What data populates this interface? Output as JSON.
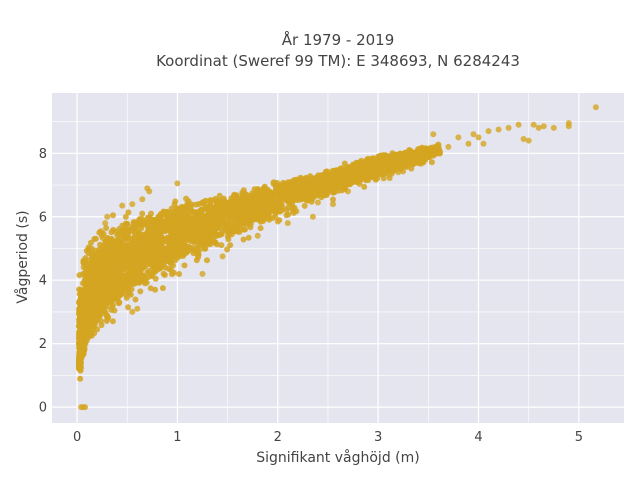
{
  "chart_data": {
    "type": "scatter",
    "title_lines": [
      "År 1979 - 2019",
      "Koordinat (Sweref 99 TM): E 348693, N 6284243"
    ],
    "xlabel": "Signifikant våghöjd (m)",
    "ylabel": "Vågperiod (s)",
    "xlim": [
      -0.25,
      5.45
    ],
    "ylim": [
      -0.5,
      9.9
    ],
    "x_ticks": [
      0,
      1,
      2,
      3,
      4,
      5
    ],
    "y_ticks": [
      0,
      2,
      4,
      6,
      8
    ],
    "grid": true,
    "colors": {
      "marker": "#d4a520",
      "plot_bg": "#e5e5ef",
      "grid": "#ffffff"
    },
    "series": [
      {
        "trend": [
          [
            0.02,
            1.5
          ],
          [
            0.05,
            2.6
          ],
          [
            0.1,
            3.2
          ],
          [
            0.2,
            3.8
          ],
          [
            0.3,
            4.2
          ],
          [
            0.5,
            4.7
          ],
          [
            0.75,
            5.1
          ],
          [
            1.0,
            5.5
          ],
          [
            1.5,
            6.1
          ],
          [
            2.0,
            6.6
          ],
          [
            2.5,
            7.1
          ],
          [
            3.0,
            7.6
          ],
          [
            3.5,
            8.0
          ],
          [
            4.0,
            8.45
          ],
          [
            4.5,
            8.7
          ],
          [
            4.9,
            8.9
          ]
        ],
        "spread_upper": [
          [
            0.02,
            4.7
          ],
          [
            0.1,
            5.7
          ],
          [
            0.3,
            6.1
          ],
          [
            0.6,
            6.6
          ],
          [
            1.0,
            6.7
          ],
          [
            1.5,
            6.8
          ],
          [
            2.0,
            7.2
          ],
          [
            2.5,
            7.5
          ],
          [
            3.0,
            8.1
          ],
          [
            3.5,
            8.3
          ],
          [
            4.0,
            8.8
          ],
          [
            4.5,
            8.9
          ],
          [
            4.9,
            9.0
          ]
        ],
        "spread_lower": [
          [
            0.02,
            1.1
          ],
          [
            0.1,
            1.3
          ],
          [
            0.2,
            2.0
          ],
          [
            0.4,
            2.6
          ],
          [
            0.6,
            3.0
          ],
          [
            0.9,
            3.6
          ],
          [
            1.2,
            4.2
          ],
          [
            1.5,
            4.7
          ],
          [
            2.0,
            5.6
          ],
          [
            2.5,
            6.4
          ],
          [
            3.0,
            7.0
          ],
          [
            3.5,
            7.6
          ],
          [
            4.0,
            8.2
          ],
          [
            4.5,
            8.5
          ],
          [
            4.9,
            8.7
          ]
        ],
        "points": [
          [
            5.17,
            9.45
          ],
          [
            4.9,
            8.95
          ],
          [
            4.9,
            8.85
          ],
          [
            4.75,
            8.8
          ],
          [
            4.65,
            8.85
          ],
          [
            4.6,
            8.8
          ],
          [
            4.55,
            8.9
          ],
          [
            4.5,
            8.4
          ],
          [
            4.45,
            8.45
          ],
          [
            4.4,
            8.9
          ],
          [
            4.3,
            8.8
          ],
          [
            4.2,
            8.75
          ],
          [
            4.1,
            8.7
          ],
          [
            4.05,
            8.3
          ],
          [
            4.0,
            8.5
          ],
          [
            3.95,
            8.6
          ],
          [
            3.9,
            8.3
          ],
          [
            3.8,
            8.5
          ],
          [
            3.7,
            8.2
          ],
          [
            3.6,
            8.0
          ],
          [
            3.55,
            8.6
          ],
          [
            3.4,
            8.05
          ],
          [
            3.3,
            7.95
          ],
          [
            3.2,
            7.4
          ],
          [
            3.1,
            7.7
          ],
          [
            3.05,
            7.8
          ],
          [
            2.9,
            7.35
          ],
          [
            2.8,
            7.2
          ],
          [
            2.7,
            6.8
          ],
          [
            2.55,
            6.4
          ],
          [
            2.4,
            6.45
          ],
          [
            2.35,
            6.0
          ],
          [
            2.1,
            5.8
          ],
          [
            2.0,
            5.85
          ],
          [
            1.8,
            5.4
          ],
          [
            1.45,
            4.75
          ],
          [
            1.25,
            4.2
          ],
          [
            1.0,
            7.05
          ],
          [
            0.7,
            6.9
          ],
          [
            0.72,
            6.8
          ],
          [
            0.65,
            6.55
          ],
          [
            0.55,
            6.4
          ],
          [
            0.45,
            6.35
          ],
          [
            0.3,
            6.0
          ],
          [
            0.28,
            5.8
          ],
          [
            0.55,
            3.0
          ],
          [
            0.6,
            3.1
          ],
          [
            0.08,
            0.0
          ],
          [
            0.06,
            0.0
          ],
          [
            0.04,
            0.0
          ]
        ]
      }
    ]
  }
}
